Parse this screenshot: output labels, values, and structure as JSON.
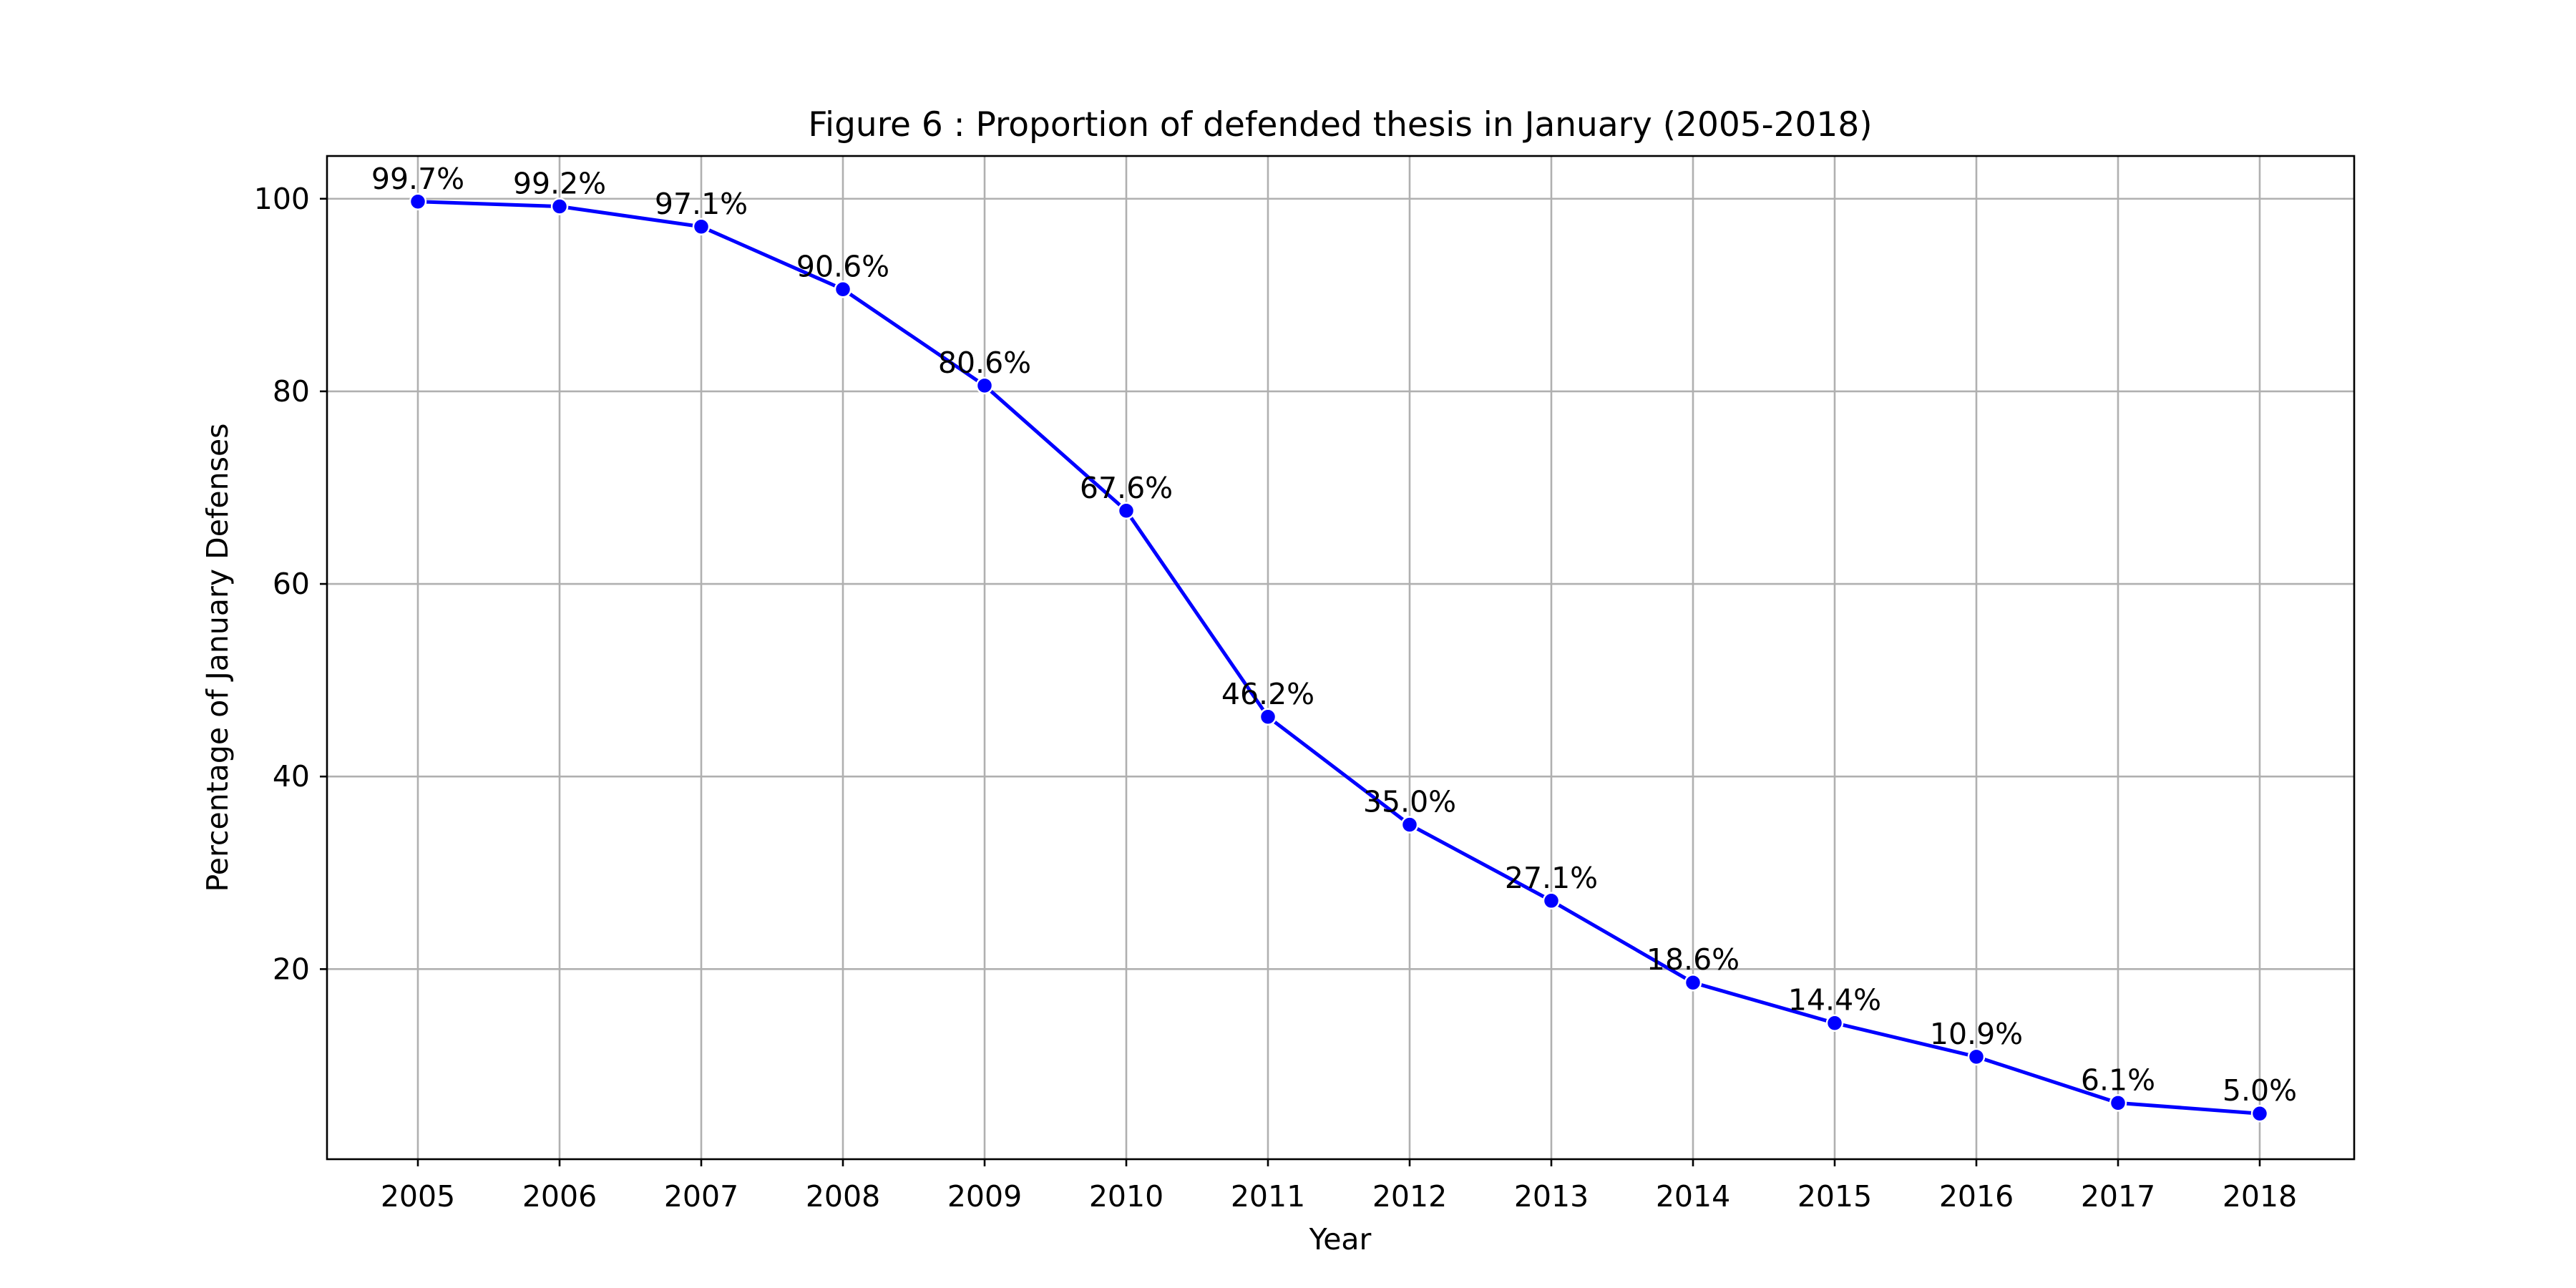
{
  "chart_data": {
    "type": "line",
    "title": "Figure 6 : Proportion of defended thesis in January (2005-2018)",
    "xlabel": "Year",
    "ylabel": "Percentage of January Defenses",
    "x": [
      "2005",
      "2006",
      "2007",
      "2008",
      "2009",
      "2010",
      "2011",
      "2012",
      "2013",
      "2014",
      "2015",
      "2016",
      "2017",
      "2018"
    ],
    "series": [
      {
        "values": [
          99.7,
          99.2,
          97.1,
          90.6,
          80.6,
          67.6,
          46.2,
          35.0,
          27.1,
          18.6,
          14.4,
          10.9,
          6.1,
          5.0
        ],
        "color": "#0000ff"
      }
    ],
    "data_labels": [
      "99.7%",
      "99.2%",
      "97.1%",
      "90.6%",
      "80.6%",
      "67.6%",
      "46.2%",
      "35.0%",
      "27.1%",
      "18.6%",
      "14.4%",
      "10.9%",
      "6.1%",
      "5.0%"
    ],
    "yticks": [
      "20",
      "40",
      "60",
      "80",
      "100"
    ],
    "ylim": [
      0.26,
      104.44
    ],
    "grid": true,
    "legend": "none"
  }
}
